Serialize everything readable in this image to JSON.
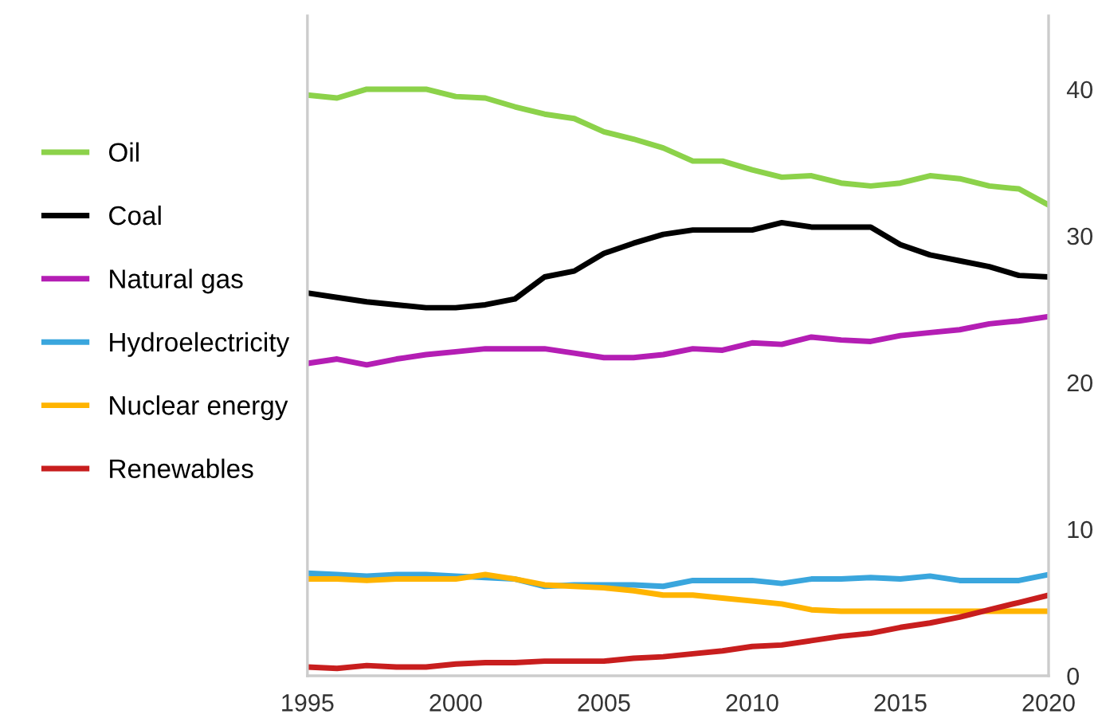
{
  "chart_data": {
    "type": "line",
    "x": [
      1995,
      1996,
      1997,
      1998,
      1999,
      2000,
      2001,
      2002,
      2003,
      2004,
      2005,
      2006,
      2007,
      2008,
      2009,
      2010,
      2011,
      2012,
      2013,
      2014,
      2015,
      2016,
      2017,
      2018,
      2019,
      2020
    ],
    "series": [
      {
        "name": "Oil",
        "color": "#8cd24a",
        "values": [
          39.6,
          39.4,
          40.0,
          40.0,
          40.0,
          39.5,
          39.4,
          38.8,
          38.3,
          38.0,
          37.1,
          36.6,
          36.0,
          35.1,
          35.1,
          34.5,
          34.0,
          34.1,
          33.6,
          33.4,
          33.6,
          34.1,
          33.9,
          33.4,
          33.2,
          32.1
        ]
      },
      {
        "name": "Coal",
        "color": "#000000",
        "values": [
          26.1,
          25.8,
          25.5,
          25.3,
          25.1,
          25.1,
          25.3,
          25.7,
          27.2,
          27.6,
          28.8,
          29.5,
          30.1,
          30.4,
          30.4,
          30.4,
          30.9,
          30.6,
          30.6,
          30.6,
          29.4,
          28.7,
          28.3,
          27.9,
          27.3,
          27.2
        ]
      },
      {
        "name": "Natural gas",
        "color": "#b41eb4",
        "values": [
          21.3,
          21.6,
          21.2,
          21.6,
          21.9,
          22.1,
          22.3,
          22.3,
          22.3,
          22.0,
          21.7,
          21.7,
          21.9,
          22.3,
          22.2,
          22.7,
          22.6,
          23.1,
          22.9,
          22.8,
          23.2,
          23.4,
          23.6,
          24.0,
          24.2,
          24.5
        ]
      },
      {
        "name": "Hydroelectricity",
        "color": "#3aa6dd",
        "values": [
          7.0,
          6.9,
          6.8,
          6.9,
          6.9,
          6.8,
          6.7,
          6.6,
          6.1,
          6.2,
          6.2,
          6.2,
          6.1,
          6.5,
          6.5,
          6.5,
          6.3,
          6.6,
          6.6,
          6.7,
          6.6,
          6.8,
          6.5,
          6.5,
          6.5,
          6.9
        ]
      },
      {
        "name": "Nuclear energy",
        "color": "#ffb400",
        "values": [
          6.6,
          6.6,
          6.5,
          6.6,
          6.6,
          6.6,
          6.9,
          6.6,
          6.2,
          6.1,
          6.0,
          5.8,
          5.5,
          5.5,
          5.3,
          5.1,
          4.9,
          4.5,
          4.4,
          4.4,
          4.4,
          4.4,
          4.4,
          4.4,
          4.4,
          4.4
        ]
      },
      {
        "name": "Renewables",
        "color": "#c81e1e",
        "values": [
          0.6,
          0.5,
          0.7,
          0.6,
          0.6,
          0.8,
          0.9,
          0.9,
          1.0,
          1.0,
          1.0,
          1.2,
          1.3,
          1.5,
          1.7,
          2.0,
          2.1,
          2.4,
          2.7,
          2.9,
          3.3,
          3.6,
          4.0,
          4.5,
          5.0,
          5.5
        ]
      }
    ],
    "xlim": [
      1995,
      2020
    ],
    "xticks": [
      1995,
      2000,
      2005,
      2010,
      2015,
      2020
    ],
    "ylim": [
      0,
      45
    ],
    "yticks": [
      0,
      10,
      20,
      30,
      40
    ],
    "grid": false,
    "legend": "left",
    "marker": "none",
    "line_style": "solid"
  }
}
